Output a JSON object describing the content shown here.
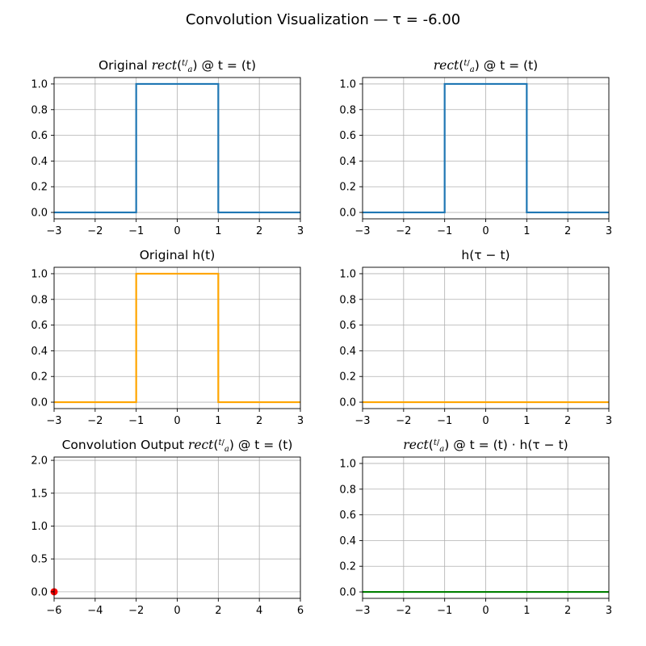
{
  "figure": {
    "suptitle": "Convolution Visualization — τ = -6.00"
  },
  "chart_data": [
    {
      "id": "p1",
      "type": "line",
      "title": {
        "pre": "Original ",
        "func": "rect",
        "frac_num": "t",
        "frac_den": "a",
        "post": " @ t = (t)"
      },
      "xlim": [
        -3,
        3
      ],
      "ylim": [
        -0.05,
        1.05
      ],
      "xticks": [
        -3,
        -2,
        -1,
        0,
        1,
        2,
        3
      ],
      "yticks": [
        0.0,
        0.2,
        0.4,
        0.6,
        0.8,
        1.0
      ],
      "ytick_labels": [
        "0.0",
        "0.2",
        "0.4",
        "0.6",
        "0.8",
        "1.0"
      ],
      "grid": true,
      "series": [
        {
          "color": "#1f77b4",
          "x": [
            -3,
            -1,
            -1,
            1,
            1,
            3
          ],
          "y": [
            0,
            0,
            1,
            1,
            0,
            0
          ]
        }
      ]
    },
    {
      "id": "p2",
      "type": "line",
      "title": {
        "pre": "",
        "func": "rect",
        "frac_num": "t",
        "frac_den": "a",
        "post": " @ t = (t)"
      },
      "xlim": [
        -3,
        3
      ],
      "ylim": [
        -0.05,
        1.05
      ],
      "xticks": [
        -3,
        -2,
        -1,
        0,
        1,
        2,
        3
      ],
      "yticks": [
        0.0,
        0.2,
        0.4,
        0.6,
        0.8,
        1.0
      ],
      "ytick_labels": [
        "0.0",
        "0.2",
        "0.4",
        "0.6",
        "0.8",
        "1.0"
      ],
      "grid": true,
      "series": [
        {
          "color": "#1f77b4",
          "x": [
            -3,
            -1,
            -1,
            1,
            1,
            3
          ],
          "y": [
            0,
            0,
            1,
            1,
            0,
            0
          ]
        }
      ]
    },
    {
      "id": "p3",
      "type": "line",
      "title": {
        "plain": "Original h(t)"
      },
      "xlim": [
        -3,
        3
      ],
      "ylim": [
        -0.05,
        1.05
      ],
      "xticks": [
        -3,
        -2,
        -1,
        0,
        1,
        2,
        3
      ],
      "yticks": [
        0.0,
        0.2,
        0.4,
        0.6,
        0.8,
        1.0
      ],
      "ytick_labels": [
        "0.0",
        "0.2",
        "0.4",
        "0.6",
        "0.8",
        "1.0"
      ],
      "grid": true,
      "series": [
        {
          "color": "#ffa500",
          "x": [
            -3,
            -1,
            -1,
            1,
            1,
            3
          ],
          "y": [
            0,
            0,
            1,
            1,
            0,
            0
          ]
        }
      ]
    },
    {
      "id": "p4",
      "type": "line",
      "title": {
        "plain": "h(τ − t)"
      },
      "xlim": [
        -3,
        3
      ],
      "ylim": [
        -0.05,
        1.05
      ],
      "xticks": [
        -3,
        -2,
        -1,
        0,
        1,
        2,
        3
      ],
      "yticks": [
        0.0,
        0.2,
        0.4,
        0.6,
        0.8,
        1.0
      ],
      "ytick_labels": [
        "0.0",
        "0.2",
        "0.4",
        "0.6",
        "0.8",
        "1.0"
      ],
      "grid": true,
      "series": [
        {
          "color": "#ffa500",
          "x": [
            -3,
            3
          ],
          "y": [
            0,
            0
          ]
        }
      ]
    },
    {
      "id": "p5",
      "type": "scatter",
      "title": {
        "pre": "Convolution Output ",
        "func": "rect",
        "frac_num": "t",
        "frac_den": "a",
        "post": " @ t = (t)"
      },
      "xlim": [
        -6,
        6
      ],
      "ylim": [
        -0.1,
        2.05
      ],
      "xticks": [
        -6,
        -4,
        -2,
        0,
        2,
        4,
        6
      ],
      "yticks": [
        0.0,
        0.5,
        1.0,
        1.5,
        2.0
      ],
      "ytick_labels": [
        "0.0",
        "0.5",
        "1.0",
        "1.5",
        "2.0"
      ],
      "grid": true,
      "series": [
        {
          "color": "#ff0000",
          "points": [
            {
              "x": -6,
              "y": 0
            }
          ]
        }
      ]
    },
    {
      "id": "p6",
      "type": "line",
      "title": {
        "pre": "",
        "func": "rect",
        "frac_num": "t",
        "frac_den": "a",
        "post": " @ t = (t) · h(τ − t)"
      },
      "xlim": [
        -3,
        3
      ],
      "ylim": [
        -0.05,
        1.05
      ],
      "xticks": [
        -3,
        -2,
        -1,
        0,
        1,
        2,
        3
      ],
      "yticks": [
        0.0,
        0.2,
        0.4,
        0.6,
        0.8,
        1.0
      ],
      "ytick_labels": [
        "0.0",
        "0.2",
        "0.4",
        "0.6",
        "0.8",
        "1.0"
      ],
      "grid": true,
      "series": [
        {
          "color": "#008000",
          "x": [
            -3,
            3
          ],
          "y": [
            0,
            0
          ]
        }
      ]
    }
  ]
}
